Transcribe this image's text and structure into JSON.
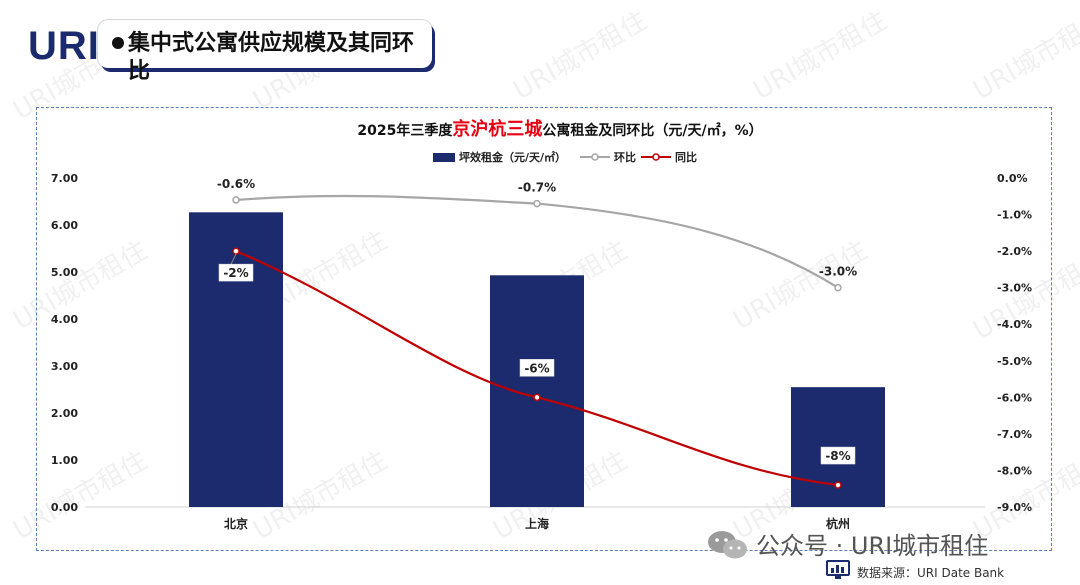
{
  "brand": {
    "logo_text": "URI",
    "watermark_text": "URI城市租住"
  },
  "header": {
    "title": "集中式公寓供应规模及其同环比"
  },
  "footer": {
    "wechat_text": "公众号 · URI城市租住",
    "source_text": "数据来源：URI Date Bank"
  },
  "colors": {
    "bar": "#1c2b6e",
    "huanbi_line": "#a6a6a6",
    "tongbi_line": "#c00000",
    "title_highlight": "#e60012",
    "accent_shadow": "#1c2b6e"
  },
  "chart_data": {
    "type": "bar",
    "title_parts": [
      "2025年三季度",
      "京沪杭三城",
      "公寓租金及同环比（元/天/㎡，%）"
    ],
    "title_highlight_index": 1,
    "categories": [
      "北京",
      "上海",
      "杭州"
    ],
    "series": [
      {
        "name": "坪效租金（元/天/㎡）",
        "type": "bar",
        "axis": "left",
        "values": [
          6.27,
          4.93,
          2.55
        ]
      },
      {
        "name": "环比",
        "type": "line",
        "axis": "right",
        "values": [
          -0.6,
          -0.7,
          -3.0
        ],
        "labels": [
          "-0.6%",
          "-0.7%",
          "-3.0%"
        ]
      },
      {
        "name": "同比",
        "type": "line",
        "axis": "right",
        "values": [
          -2,
          -6,
          -8.4
        ],
        "labels": [
          "-2%",
          "-6%",
          "-8%"
        ]
      }
    ],
    "y_left": {
      "min": 0,
      "max": 7,
      "ticks": [
        "0.00",
        "1.00",
        "2.00",
        "3.00",
        "4.00",
        "5.00",
        "6.00",
        "7.00"
      ]
    },
    "y_right": {
      "min": -9,
      "max": 0,
      "ticks": [
        "0.0%",
        "-1.0%",
        "-2.0%",
        "-3.0%",
        "-4.0%",
        "-5.0%",
        "-6.0%",
        "-7.0%",
        "-8.0%",
        "-9.0%"
      ]
    },
    "legend_position": "top-center",
    "grid": false
  }
}
